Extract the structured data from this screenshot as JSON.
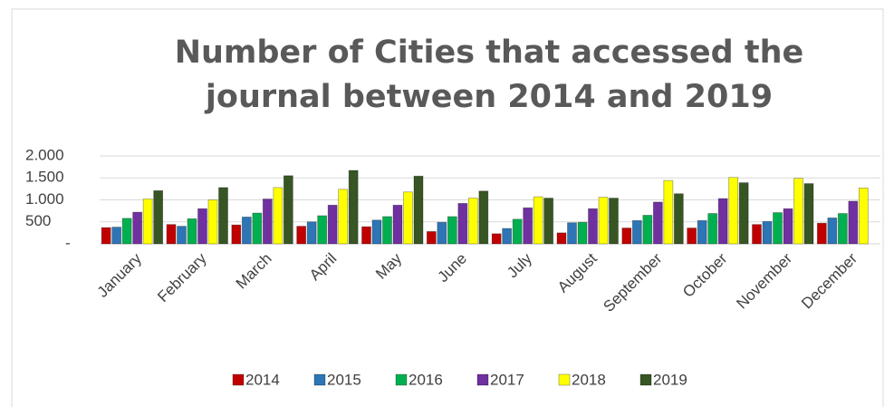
{
  "chart_data": {
    "type": "bar",
    "title": "Number of Cities that accessed the journal between 2014 and 2019",
    "categories": [
      "January",
      "February",
      "March",
      "April",
      "May",
      "June",
      "July",
      "August",
      "September",
      "October",
      "November",
      "December"
    ],
    "series": [
      {
        "name": "2014",
        "color": "#c00000",
        "values": [
          370,
          440,
          430,
          400,
          390,
          280,
          230,
          250,
          360,
          360,
          440,
          470
        ]
      },
      {
        "name": "2015",
        "color": "#2e75b6",
        "values": [
          380,
          400,
          610,
          500,
          540,
          490,
          350,
          480,
          530,
          530,
          510,
          590
        ]
      },
      {
        "name": "2016",
        "color": "#00b050",
        "values": [
          580,
          570,
          700,
          640,
          620,
          620,
          560,
          490,
          650,
          690,
          710,
          690
        ]
      },
      {
        "name": "2017",
        "color": "#7030a0",
        "values": [
          720,
          800,
          1020,
          880,
          880,
          920,
          820,
          800,
          950,
          1030,
          800,
          970
        ]
      },
      {
        "name": "2018",
        "color": "#ffff00",
        "values": [
          1020,
          1000,
          1280,
          1240,
          1180,
          1040,
          1070,
          1060,
          1440,
          1510,
          1490,
          1270
        ]
      },
      {
        "name": "2019",
        "color": "#375623",
        "values": [
          1210,
          1280,
          1550,
          1670,
          1540,
          1200,
          1040,
          1040,
          1140,
          1390,
          1370,
          null
        ]
      }
    ],
    "ylim": [
      0,
      2000
    ],
    "yticks": [
      {
        "value": 0,
        "label": "-"
      },
      500,
      {
        "value": 1000,
        "label": "1.000"
      },
      {
        "value": 1500,
        "label": "1.500"
      },
      {
        "value": 2000,
        "label": "2.000"
      }
    ],
    "grid": true,
    "legend": "bottom"
  }
}
